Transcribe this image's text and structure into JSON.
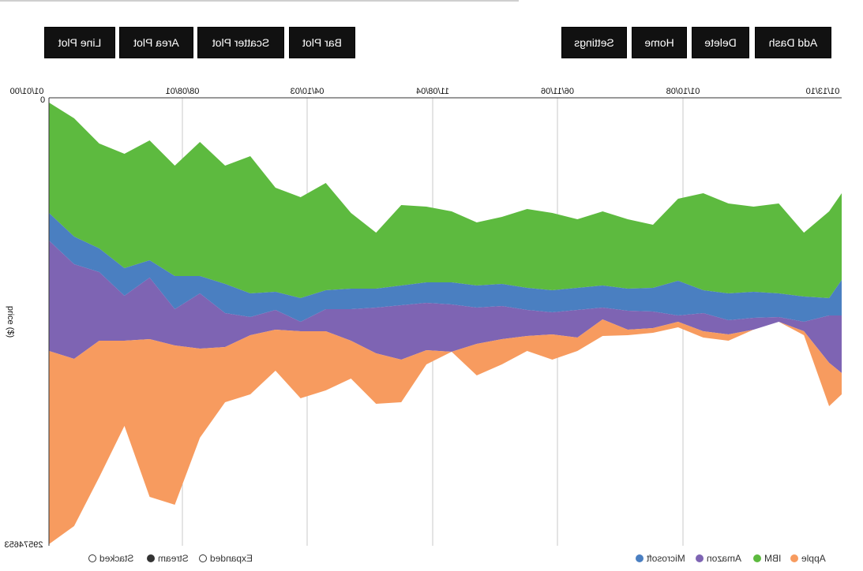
{
  "toolbar": {
    "left_buttons": [
      {
        "label": "Line Plot"
      },
      {
        "label": "Area Plot"
      },
      {
        "label": "Scatter Plot"
      },
      {
        "label": "Bar Plot"
      }
    ],
    "right_buttons": [
      {
        "label": "Settings"
      },
      {
        "label": "Home"
      },
      {
        "label": "Delete"
      },
      {
        "label": "Add Dash"
      }
    ]
  },
  "modes": [
    {
      "label": "Stacked",
      "selected": false
    },
    {
      "label": "Stream",
      "selected": true
    },
    {
      "label": "Expanded",
      "selected": false
    }
  ],
  "chart_data": {
    "type": "area",
    "mirrored_horizontally": true,
    "ylabel": "price ($)",
    "y_top_label": "0",
    "y_bottom_label": "29574653",
    "x_ticks": [
      "01/01/00",
      "08/08/01",
      "04/10/03",
      "11/08/04",
      "06/11/06",
      "01/10/08",
      "01/13/10"
    ],
    "legend_position": "bottom",
    "series": [
      {
        "name": "Microsoft",
        "color": "#4a7fc1"
      },
      {
        "name": "Amazon",
        "color": "#7e64b3"
      },
      {
        "name": "IBM",
        "color": "#5dba3f"
      },
      {
        "name": "Apple",
        "color": "#f79b5f"
      }
    ],
    "layers": {
      "x": [
        0,
        0.2,
        0.4,
        0.6,
        0.8,
        1.0,
        1.2,
        1.4,
        1.6,
        1.8,
        2.0,
        2.2,
        2.4,
        2.6,
        2.8,
        3.0,
        3.2,
        3.4,
        3.6,
        3.8,
        4.0,
        4.2,
        4.4,
        4.6,
        4.8,
        5.0,
        5.2,
        5.4,
        5.6,
        5.8,
        6.0,
        6.2,
        6.3
      ],
      "ibm_top": [
        130,
        150,
        182,
        195,
        178,
        210,
        180,
        210,
        198,
        238,
        250,
        232,
        270,
        295,
        260,
        262,
        268,
        282,
        275,
        265,
        270,
        278,
        268,
        278,
        285,
        252,
        245,
        258,
        262,
        258,
        295,
        268,
        245
      ],
      "ibm_ms": [
        270,
        300,
        315,
        340,
        330,
        350,
        350,
        360,
        372,
        370,
        378,
        368,
        366,
        366,
        362,
        358,
        358,
        362,
        360,
        365,
        368,
        365,
        362,
        366,
        365,
        356,
        368,
        372,
        370,
        372,
        376,
        378,
        355
      ],
      "ms_amz": [
        305,
        335,
        345,
        375,
        352,
        392,
        372,
        397,
        402,
        393,
        408,
        392,
        392,
        390,
        387,
        384,
        386,
        390,
        388,
        393,
        396,
        393,
        390,
        394,
        395,
        400,
        397,
        406,
        403,
        402,
        408,
        400,
        400
      ],
      "amz_apple": [
        445,
        455,
        432,
        432,
        430,
        438,
        442,
        440,
        425,
        418,
        420,
        420,
        432,
        448,
        456,
        444,
        446,
        436,
        430,
        426,
        424,
        428,
        405,
        418,
        416,
        408,
        420,
        424,
        418,
        408,
        420,
        460,
        473
      ],
      "apple_bot": [
        690,
        667,
        605,
        540,
        630,
        640,
        555,
        510,
        500,
        470,
        505,
        495,
        480,
        512,
        510,
        462,
        446,
        476,
        462,
        445,
        456,
        445,
        426,
        425,
        422,
        415,
        428,
        432,
        418,
        408,
        425,
        515,
        500
      ]
    }
  }
}
